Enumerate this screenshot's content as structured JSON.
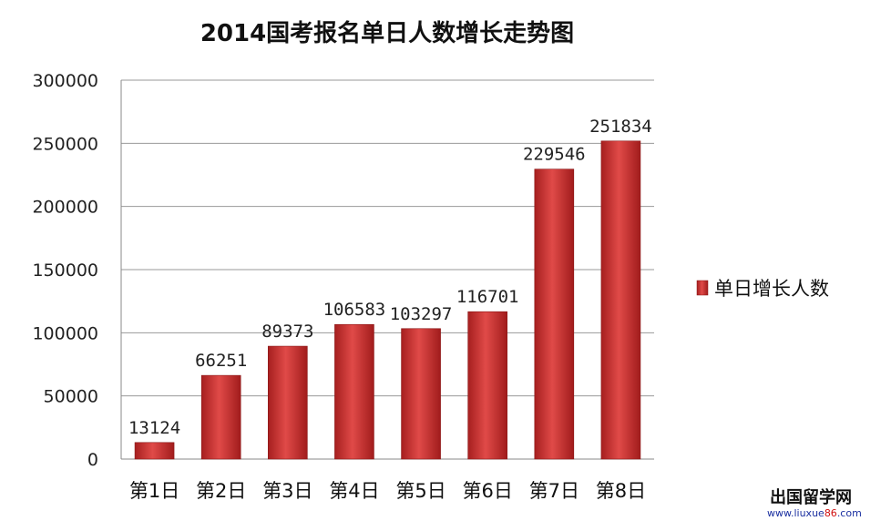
{
  "chart_data": {
    "type": "bar",
    "title": "2014国考报名单日人数增长走势图",
    "categories": [
      "第1日",
      "第2日",
      "第3日",
      "第4日",
      "第5日",
      "第6日",
      "第7日",
      "第8日"
    ],
    "series": [
      {
        "name": "单日增长人数",
        "values": [
          13124,
          66251,
          89373,
          106583,
          103297,
          116701,
          229546,
          251834
        ]
      }
    ],
    "data_labels": [
      "13124",
      "66251",
      "89373",
      "106583",
      "103297",
      "116701",
      "229546",
      "251834"
    ],
    "yticks": [
      "0",
      "50000",
      "100000",
      "150000",
      "200000",
      "250000",
      "300000"
    ],
    "ylim": [
      0,
      300000
    ],
    "grid": true,
    "legend_position": "right",
    "bar_color": "#c0302f"
  },
  "watermark": {
    "line1": "出国留学网",
    "line2_blue1": "www.liuxue",
    "line2_red": "86",
    "line2_blue2": ".com"
  }
}
